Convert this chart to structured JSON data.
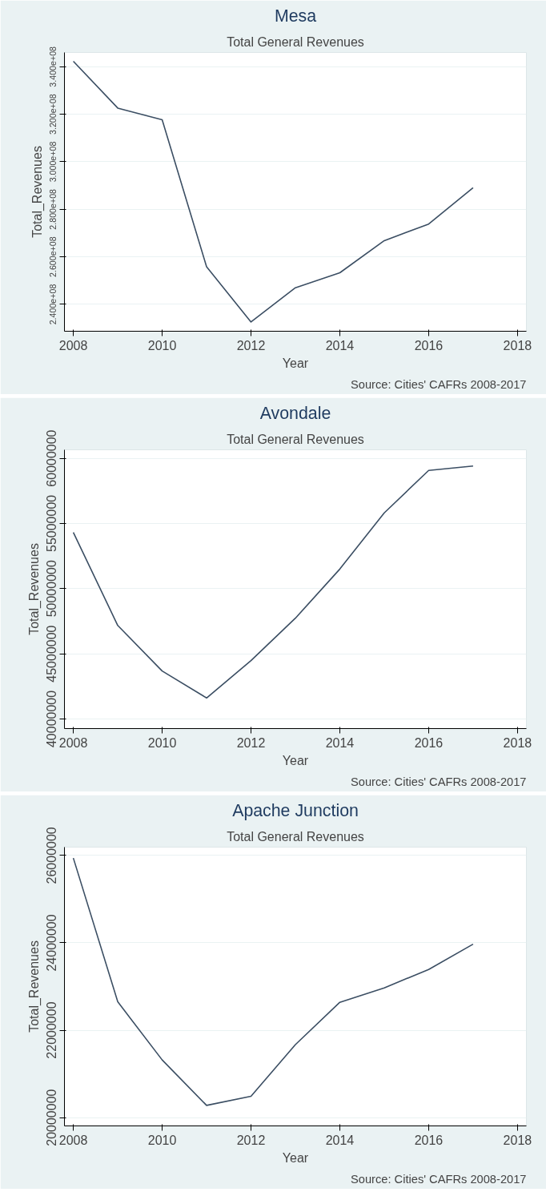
{
  "chart_data": [
    {
      "type": "line",
      "title": "Mesa",
      "subtitle": "Total General Revenues",
      "xlabel": "Year",
      "ylabel": "Total_Revenues",
      "annotations": [
        "Source: Cities' CAFRs 2008-2017"
      ],
      "x": [
        2008,
        2009,
        2010,
        2011,
        2012,
        2013,
        2014,
        2015,
        2016,
        2017
      ],
      "series": [
        {
          "color": "#3b4e63",
          "values": [
            342300000,
            322600000,
            317700000,
            255800000,
            232600000,
            247000000,
            253300000,
            266800000,
            273800000,
            289100000
          ]
        }
      ],
      "xlim": [
        2007.8,
        2018.2
      ],
      "xticks": [
        2008,
        2010,
        2012,
        2014,
        2016,
        2018
      ],
      "ylim": [
        228700000,
        346000000
      ],
      "yticks": [
        {
          "value": 240000000,
          "label": "2.400e+08"
        },
        {
          "value": 260000000,
          "label": "2.600e+08"
        },
        {
          "value": 280000000,
          "label": "2.800e+08"
        },
        {
          "value": 300000000,
          "label": "3.000e+08"
        },
        {
          "value": 320000000,
          "label": "3.200e+08"
        },
        {
          "value": 340000000,
          "label": "3.400e+08"
        }
      ],
      "grid": "y"
    },
    {
      "type": "line",
      "title": "Avondale",
      "subtitle": "Total General Revenues",
      "xlabel": "Year",
      "ylabel": "Total_Revenues",
      "annotations": [
        "Source: Cities' CAFRs 2008-2017"
      ],
      "x": [
        2008,
        2009,
        2010,
        2011,
        2012,
        2013,
        2014,
        2015,
        2016,
        2017
      ],
      "series": [
        {
          "color": "#3b4e63",
          "values": [
            54310000,
            47170000,
            43680000,
            41610000,
            44480000,
            47730000,
            51500000,
            55810000,
            59070000,
            59410000
          ]
        }
      ],
      "xlim": [
        2007.8,
        2018.2
      ],
      "xticks": [
        2008,
        2010,
        2012,
        2014,
        2016,
        2018
      ],
      "ylim": [
        39260000,
        60650000
      ],
      "yticks": [
        40000000,
        45000000,
        50000000,
        55000000,
        60000000
      ],
      "grid": "y"
    },
    {
      "type": "line",
      "title": "Apache Junction",
      "subtitle": "Total General Revenues",
      "xlabel": "Year",
      "ylabel": "Total_Revenues",
      "annotations": [
        "Source: Cities' CAFRs 2008-2017"
      ],
      "x": [
        2008,
        2009,
        2010,
        2011,
        2012,
        2013,
        2014,
        2015,
        2016,
        2017
      ],
      "series": [
        {
          "color": "#3b4e63",
          "values": [
            25940000,
            22650000,
            21320000,
            20280000,
            20490000,
            21670000,
            22640000,
            22970000,
            23390000,
            23970000
          ]
        }
      ],
      "xlim": [
        2007.8,
        2018.2
      ],
      "xticks": [
        2008,
        2010,
        2012,
        2014,
        2016,
        2018
      ],
      "ylim": [
        19810000,
        26190000
      ],
      "yticks": [
        20000000,
        22000000,
        24000000,
        26000000
      ],
      "grid": "y"
    }
  ]
}
